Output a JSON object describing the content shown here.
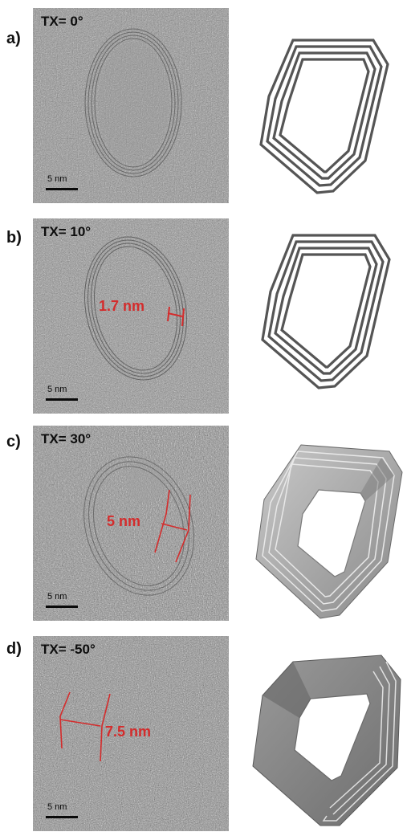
{
  "panels": [
    {
      "letter": "a)",
      "tilt": "TX= 0°",
      "scalebar": "5 nm",
      "measurement": ""
    },
    {
      "letter": "b)",
      "tilt": "TX= 10°",
      "scalebar": "5 nm",
      "measurement": "1.7 nm"
    },
    {
      "letter": "c)",
      "tilt": "TX= 30°",
      "scalebar": "5 nm",
      "measurement": "5 nm"
    },
    {
      "letter": "d)",
      "tilt": "TX= -50°",
      "scalebar": "5 nm",
      "measurement": "7.5 nm"
    }
  ],
  "colors": {
    "measurement": "#d42c2c",
    "shell_stroke": "#555555",
    "model_3d_face": "#a9a9a9"
  }
}
